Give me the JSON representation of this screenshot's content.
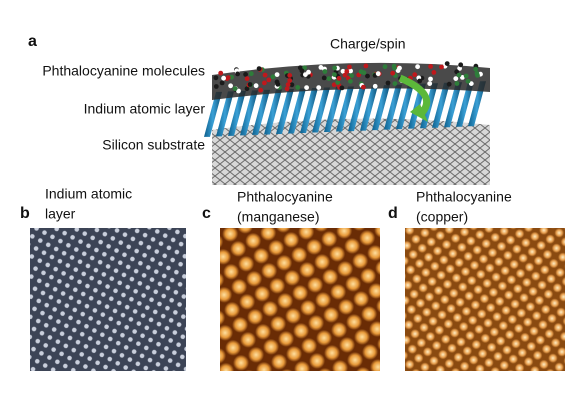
{
  "panels": [
    {
      "label": "a",
      "annotations": [
        "Charge/spin",
        "Phthalocyanine molecules",
        "Indium atomic layer",
        "Silicon substrate"
      ]
    },
    {
      "label": "b",
      "caption_lines": [
        "Indium atomic",
        "layer"
      ]
    },
    {
      "label": "c",
      "caption_lines": [
        "Phthalocyanine",
        "(manganese)"
      ]
    },
    {
      "label": "d",
      "caption_lines": [
        "Phthalocyanine",
        "(copper)"
      ]
    }
  ]
}
